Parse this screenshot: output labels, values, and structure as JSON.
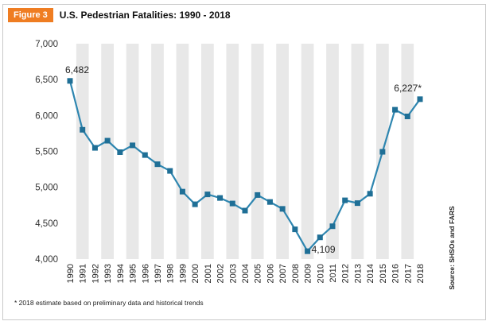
{
  "figure_label": "Figure 3",
  "title": "U.S. Pedestrian Fatalities: 1990 - 2018",
  "source": "Source: SHSOs and FARS",
  "footnote": "* 2018 estimate based on preliminary data and historical trends",
  "colors": {
    "accent": "#ef7d22",
    "line": "#2e86b0",
    "marker": "#1f6f96",
    "band": "#e8e8e8"
  },
  "chart_data": {
    "type": "line",
    "title": "U.S. Pedestrian Fatalities: 1990 - 2018",
    "xlabel": "",
    "ylabel": "",
    "categories": [
      "1990",
      "1991",
      "1992",
      "1993",
      "1994",
      "1995",
      "1996",
      "1997",
      "1998",
      "1999",
      "2000",
      "2001",
      "2002",
      "2003",
      "2004",
      "2005",
      "2006",
      "2007",
      "2008",
      "2009",
      "2010",
      "2011",
      "2012",
      "2013",
      "2014",
      "2015",
      "2016",
      "2017",
      "2018"
    ],
    "series": [
      {
        "values": [
          6482,
          5801,
          5549,
          5649,
          5489,
          5584,
          5449,
          5321,
          5228,
          4939,
          4763,
          4901,
          4851,
          4774,
          4675,
          4892,
          4795,
          4699,
          4414,
          4109,
          4302,
          4457,
          4818,
          4779,
          4910,
          5494,
          6080,
          5987,
          6227
        ]
      }
    ],
    "ylim": [
      4000,
      7000
    ],
    "yticks": [
      "4,000",
      "4,500",
      "5,000",
      "5,500",
      "6,000",
      "6,500",
      "7,000"
    ],
    "grid": "alternating vertical bands",
    "annotations": [
      {
        "index": 0,
        "text": "6,482"
      },
      {
        "index": 19,
        "text": "4,109"
      },
      {
        "index": 28,
        "text": "6,227*"
      }
    ]
  }
}
